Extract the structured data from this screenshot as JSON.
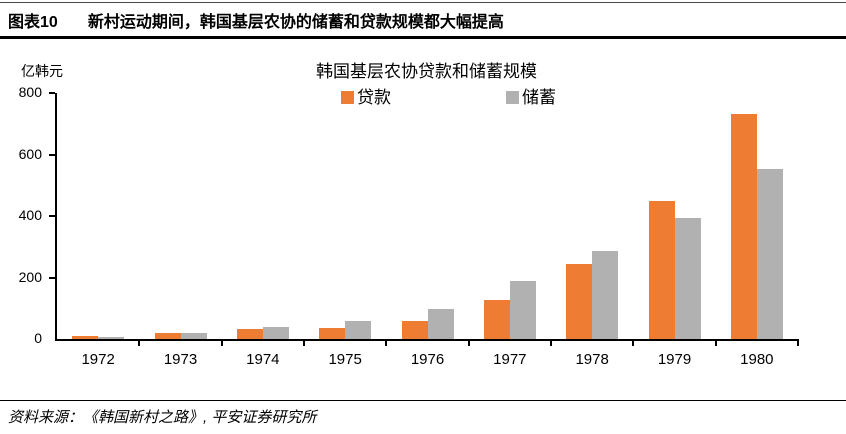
{
  "header": {
    "figure_label": "图表10",
    "title": "新村运动期间，韩国基层农协的储蓄和贷款规模都大幅提高"
  },
  "chart_data": {
    "type": "bar",
    "title": "韩国基层农协贷款和储蓄规模",
    "unit": "亿韩元",
    "categories": [
      "1972",
      "1973",
      "1974",
      "1975",
      "1976",
      "1977",
      "1978",
      "1979",
      "1980"
    ],
    "series": [
      {
        "name": "贷款",
        "color": "#EE7D33",
        "values": [
          10,
          20,
          31,
          36,
          57,
          127,
          245,
          448,
          731
        ]
      },
      {
        "name": "储蓄",
        "color": "#B1B1B1",
        "values": [
          6,
          20,
          39,
          57,
          99,
          189,
          287,
          394,
          552
        ]
      }
    ],
    "ylim": [
      0,
      800
    ],
    "yticks": [
      0,
      200,
      400,
      600,
      800
    ],
    "grid": false,
    "legend_position": "top",
    "axis_color": "#000000"
  },
  "footer": {
    "source": "资料来源：《韩国新村之路》, 平安证券研究所"
  }
}
